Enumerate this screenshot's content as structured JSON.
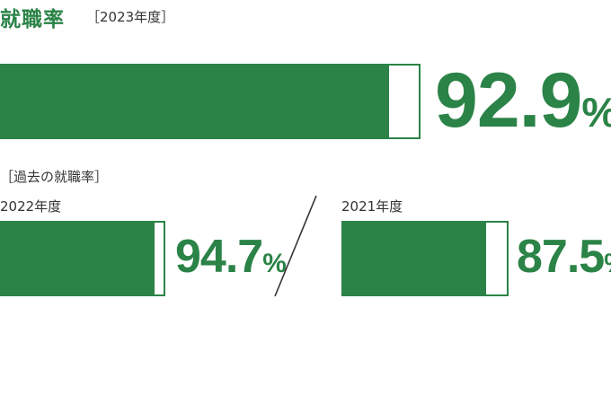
{
  "header": {
    "title": "就職率",
    "year_label": "［2023年度］"
  },
  "past_label": "［過去の就職率］",
  "colors": {
    "accent": "#2b8347",
    "text": "#333333"
  },
  "chart_data": [
    {
      "type": "bar",
      "categories": [
        "2023年度"
      ],
      "values": [
        92.9
      ],
      "value_label": "92.9",
      "unit": "%",
      "ylim": [
        0,
        100
      ]
    },
    {
      "type": "bar",
      "categories": [
        "2022年度"
      ],
      "values": [
        94.7
      ],
      "value_label": "94.7",
      "unit": "%",
      "ylim": [
        0,
        100
      ]
    },
    {
      "type": "bar",
      "categories": [
        "2021年度"
      ],
      "values": [
        87.5
      ],
      "value_label": "87.5",
      "unit": "%",
      "ylim": [
        0,
        100
      ]
    }
  ]
}
